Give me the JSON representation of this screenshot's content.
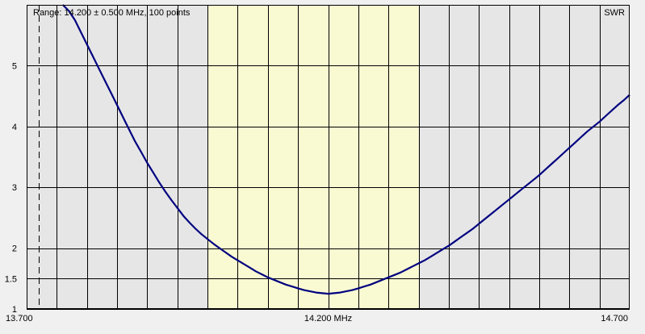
{
  "chart_data": {
    "type": "line",
    "title": "Range: 14.200 ± 0.500 MHz, 100 points",
    "series_label": "SWR",
    "xlim": [
      13.7,
      14.7
    ],
    "ylim": [
      1,
      6
    ],
    "x_ticks": [
      {
        "value": 13.7,
        "label": "13.700"
      },
      {
        "value": 14.2,
        "label": "14.200 MHz"
      },
      {
        "value": 14.7,
        "label": "14.700"
      }
    ],
    "y_ticks": [
      {
        "value": 1,
        "label": "1"
      },
      {
        "value": 1.5,
        "label": "1.5"
      },
      {
        "value": 2,
        "label": "2"
      },
      {
        "value": 3,
        "label": "3"
      },
      {
        "value": 4,
        "label": "4"
      },
      {
        "value": 5,
        "label": "5"
      }
    ],
    "band_highlight": [
      14.0,
      14.35
    ],
    "marker_x": 13.72,
    "grid": true,
    "colors": {
      "plot_bg": "#e6e6e6",
      "band": "#fafad2",
      "line": "#000080",
      "grid": "#000000",
      "page_bg": "#f0f0f0"
    },
    "x": [
      13.76,
      13.77,
      13.78,
      13.79,
      13.8,
      13.81,
      13.82,
      13.83,
      13.84,
      13.85,
      13.86,
      13.87,
      13.88,
      13.89,
      13.9,
      13.91,
      13.92,
      13.93,
      13.94,
      13.95,
      13.96,
      13.97,
      13.98,
      13.99,
      14.0,
      14.01,
      14.02,
      14.03,
      14.04,
      14.05,
      14.06,
      14.07,
      14.08,
      14.09,
      14.1,
      14.11,
      14.12,
      14.13,
      14.14,
      14.15,
      14.16,
      14.17,
      14.18,
      14.19,
      14.2,
      14.21,
      14.22,
      14.23,
      14.24,
      14.25,
      14.26,
      14.27,
      14.28,
      14.29,
      14.3,
      14.31,
      14.32,
      14.33,
      14.34,
      14.35,
      14.36,
      14.37,
      14.38,
      14.39,
      14.4,
      14.41,
      14.42,
      14.43,
      14.44,
      14.45,
      14.46,
      14.47,
      14.48,
      14.49,
      14.5,
      14.51,
      14.52,
      14.53,
      14.54,
      14.55,
      14.56,
      14.57,
      14.58,
      14.59,
      14.6,
      14.61,
      14.62,
      14.63,
      14.64,
      14.65,
      14.66,
      14.67,
      14.68,
      14.69,
      14.7
    ],
    "values": [
      6.0,
      5.9,
      5.75,
      5.55,
      5.35,
      5.15,
      4.95,
      4.75,
      4.55,
      4.35,
      4.15,
      3.95,
      3.75,
      3.58,
      3.4,
      3.24,
      3.08,
      2.93,
      2.79,
      2.66,
      2.53,
      2.42,
      2.32,
      2.23,
      2.15,
      2.07,
      2.0,
      1.93,
      1.86,
      1.8,
      1.74,
      1.68,
      1.62,
      1.57,
      1.52,
      1.48,
      1.44,
      1.4,
      1.37,
      1.34,
      1.31,
      1.29,
      1.27,
      1.26,
      1.25,
      1.26,
      1.27,
      1.29,
      1.31,
      1.34,
      1.37,
      1.4,
      1.44,
      1.48,
      1.52,
      1.56,
      1.6,
      1.65,
      1.7,
      1.75,
      1.8,
      1.86,
      1.92,
      1.98,
      2.04,
      2.11,
      2.18,
      2.25,
      2.32,
      2.4,
      2.48,
      2.56,
      2.64,
      2.72,
      2.8,
      2.88,
      2.96,
      3.04,
      3.12,
      3.2,
      3.29,
      3.38,
      3.47,
      3.56,
      3.65,
      3.74,
      3.83,
      3.92,
      4.0,
      4.08,
      4.17,
      4.26,
      4.35,
      4.43,
      4.52
    ]
  }
}
